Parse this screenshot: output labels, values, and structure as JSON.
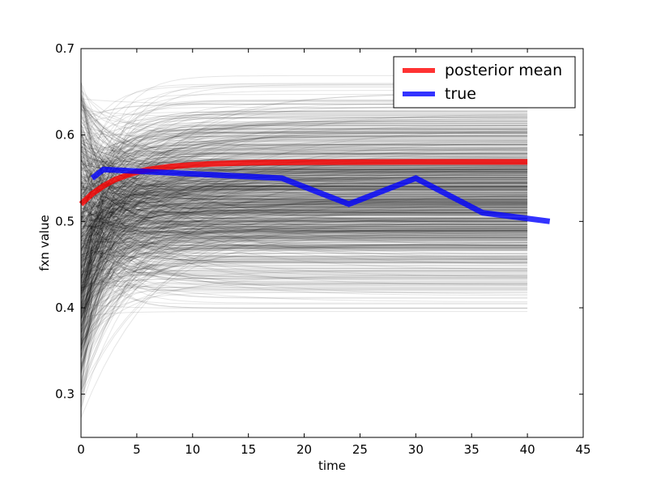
{
  "chart_data": {
    "type": "line",
    "title": "",
    "xlabel": "time",
    "ylabel": "fxn value",
    "xlim": [
      0,
      45
    ],
    "ylim": [
      0.25,
      0.7
    ],
    "xticks": [
      0,
      5,
      10,
      15,
      20,
      25,
      30,
      35,
      40,
      45
    ],
    "yticks": [
      0.3,
      0.4,
      0.5,
      0.6,
      0.7
    ],
    "grid": false,
    "legend_position": "top-right",
    "series": [
      {
        "name": "posterior mean",
        "color": "#ff0000",
        "kind": "exponential-saturation",
        "x": [
          0,
          1,
          2,
          3,
          4,
          5,
          6,
          8,
          10,
          12,
          15,
          20,
          25,
          30,
          35,
          40
        ],
        "y": [
          0.52,
          0.532,
          0.541,
          0.548,
          0.553,
          0.557,
          0.56,
          0.5635,
          0.5655,
          0.5668,
          0.5679,
          0.5685,
          0.5687,
          0.5688,
          0.5688,
          0.5688
        ]
      },
      {
        "name": "true",
        "color": "#0000ff",
        "x": [
          1,
          2,
          18,
          24,
          30,
          36,
          42
        ],
        "y": [
          0.55,
          0.56,
          0.55,
          0.52,
          0.55,
          0.51,
          0.5
        ]
      }
    ],
    "posterior_samples": {
      "description_color": "#000000",
      "count": 900,
      "x_max": 40,
      "plateau_range": [
        0.375,
        0.685
      ],
      "start_range": [
        0.27,
        0.685
      ],
      "rate_range": [
        0.1,
        0.6
      ]
    }
  }
}
